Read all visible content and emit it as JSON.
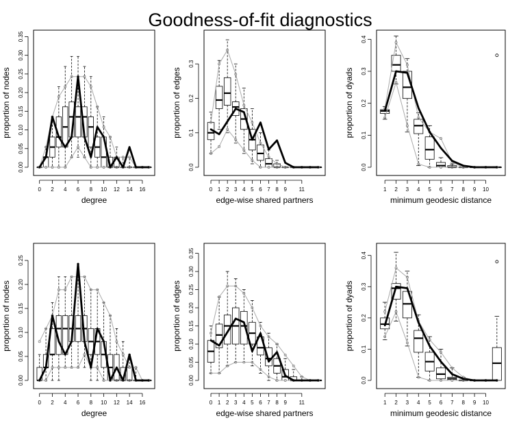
{
  "title": "Goodness-of-fit diagnostics",
  "chart_data": [
    {
      "type": "boxplot",
      "xlabel": "degree",
      "ylabel": "proportion of nodes",
      "x": [
        0,
        1,
        2,
        3,
        4,
        5,
        6,
        7,
        8,
        9,
        10,
        11,
        12,
        13,
        14,
        15,
        16,
        17
      ],
      "xticks": [
        0,
        2,
        4,
        6,
        8,
        10,
        12,
        14,
        16
      ],
      "ylim": [
        0,
        0.36
      ],
      "yticks": [
        0.0,
        0.05,
        0.1,
        0.15,
        0.2,
        0.25,
        0.3,
        0.35
      ],
      "ytick_labels": [
        "0.00",
        "0.05",
        "0.10",
        "0.15",
        "0.20",
        "0.25",
        "0.30",
        "0.35"
      ],
      "observed": [
        0,
        0.027,
        0.135,
        0.081,
        0.054,
        0.081,
        0.243,
        0.081,
        0.027,
        0.108,
        0.081,
        0,
        0.027,
        0,
        0.054,
        0,
        0,
        0
      ],
      "sim_min": [
        0,
        0,
        0,
        0,
        0,
        0.027,
        0.054,
        0.027,
        0,
        0,
        0,
        0,
        0,
        0,
        0,
        0,
        0,
        0
      ],
      "sim_max": [
        0,
        0.054,
        0.135,
        0.189,
        0.216,
        0.243,
        0.243,
        0.243,
        0.216,
        0.162,
        0.108,
        0.081,
        0.027,
        0.027,
        0.027,
        0,
        0,
        0
      ],
      "q1": [
        0,
        0,
        0.027,
        0.054,
        0.054,
        0.081,
        0.081,
        0.081,
        0.054,
        0.027,
        0,
        0,
        0,
        0,
        0,
        0,
        0,
        0
      ],
      "median": [
        0,
        0.027,
        0.054,
        0.081,
        0.108,
        0.135,
        0.135,
        0.135,
        0.108,
        0.054,
        0.027,
        0,
        0,
        0,
        0,
        0,
        0,
        0
      ],
      "q3": [
        0,
        0.027,
        0.081,
        0.135,
        0.162,
        0.175,
        0.162,
        0.162,
        0.135,
        0.081,
        0.081,
        0.027,
        0.027,
        0,
        0,
        0,
        0,
        0
      ],
      "wlo": [
        0,
        0,
        0,
        0,
        0,
        0.027,
        0.027,
        0.027,
        0,
        0,
        0,
        0,
        0,
        0,
        0,
        0,
        0,
        0
      ],
      "whi": [
        0,
        0.054,
        0.135,
        0.216,
        0.27,
        0.297,
        0.297,
        0.27,
        0.243,
        0.162,
        0.135,
        0.081,
        0.054,
        0.027,
        0.027,
        0,
        0,
        0
      ],
      "outliers": []
    },
    {
      "type": "boxplot",
      "xlabel": "edge-wise shared partners",
      "ylabel": "proportion of edges",
      "x": [
        0,
        1,
        2,
        3,
        4,
        5,
        6,
        7,
        8,
        9,
        10,
        11,
        12,
        13
      ],
      "xticks": [
        0,
        1,
        2,
        3,
        4,
        5,
        6,
        7,
        8,
        9,
        11
      ],
      "ylim": [
        0,
        0.39
      ],
      "yticks": [
        0.0,
        0.1,
        0.2,
        0.3
      ],
      "ytick_labels": [
        "0.0",
        "0.1",
        "0.2",
        "0.3"
      ],
      "observed": [
        0.11,
        0.096,
        0.133,
        0.17,
        0.16,
        0.08,
        0.13,
        0.052,
        0.078,
        0.013,
        0,
        0,
        0,
        0
      ],
      "sim_min": [
        0.04,
        0.06,
        0.11,
        0.08,
        0.05,
        0.02,
        0,
        0,
        0,
        0,
        0,
        0,
        0,
        0
      ],
      "sim_max": [
        0.13,
        0.3,
        0.34,
        0.27,
        0.18,
        0.13,
        0.07,
        0.03,
        0.01,
        0,
        0,
        0,
        0,
        0
      ],
      "q1": [
        0.08,
        0.17,
        0.18,
        0.15,
        0.11,
        0.05,
        0.02,
        0,
        0,
        0,
        0,
        0,
        0,
        0
      ],
      "median": [
        0.1,
        0.195,
        0.215,
        0.175,
        0.14,
        0.08,
        0.04,
        0.01,
        0,
        0,
        0,
        0,
        0,
        0
      ],
      "q3": [
        0.13,
        0.235,
        0.26,
        0.19,
        0.17,
        0.11,
        0.065,
        0.025,
        0.01,
        0,
        0,
        0,
        0,
        0
      ],
      "wlo": [
        0.04,
        0.11,
        0.1,
        0.07,
        0.04,
        0.01,
        0,
        0,
        0,
        0,
        0,
        0,
        0,
        0
      ],
      "whi": [
        0.16,
        0.31,
        0.37,
        0.3,
        0.23,
        0.17,
        0.1,
        0.05,
        0.02,
        0,
        0,
        0,
        0,
        0
      ],
      "outliers": []
    },
    {
      "type": "boxplot",
      "xlabel": "minimum geodesic distance",
      "ylabel": "proportion of dyads",
      "x": [
        1,
        2,
        3,
        4,
        5,
        6,
        7,
        8,
        9,
        10,
        11
      ],
      "xticks": [
        1,
        2,
        3,
        4,
        5,
        6,
        7,
        8,
        9,
        10
      ],
      "ylim": [
        0,
        0.42
      ],
      "yticks": [
        0.0,
        0.1,
        0.2,
        0.3,
        0.4
      ],
      "ytick_labels": [
        "0.0",
        "0.1",
        "0.2",
        "0.3",
        "0.4"
      ],
      "observed": [
        0.176,
        0.3,
        0.295,
        0.185,
        0.11,
        0.06,
        0.02,
        0.005,
        0,
        0,
        0
      ],
      "sim_min": [
        0.155,
        0.265,
        0.13,
        0.01,
        0,
        0,
        0,
        0,
        0,
        0,
        0
      ],
      "sim_max": [
        0.185,
        0.39,
        0.32,
        0.155,
        0.11,
        0.09,
        0.015,
        0,
        0,
        0,
        0
      ],
      "q1": [
        0.168,
        0.3,
        0.215,
        0.105,
        0.025,
        0,
        0,
        0,
        0,
        0,
        0
      ],
      "median": [
        0.176,
        0.32,
        0.25,
        0.13,
        0.055,
        0.005,
        0,
        0,
        0,
        0,
        0
      ],
      "q3": [
        0.18,
        0.35,
        0.3,
        0.15,
        0.095,
        0.015,
        0.005,
        0,
        0,
        0,
        0
      ],
      "wlo": [
        0.15,
        0.26,
        0.11,
        0.005,
        0,
        0,
        0,
        0,
        0,
        0,
        0
      ],
      "whi": [
        0.19,
        0.41,
        0.34,
        0.17,
        0.13,
        0.03,
        0.01,
        0,
        0,
        0,
        0
      ],
      "outliers": [
        {
          "x": 11,
          "y": 0.35
        }
      ]
    },
    {
      "type": "boxplot",
      "xlabel": "degree",
      "ylabel": "proportion of nodes",
      "x": [
        0,
        1,
        2,
        3,
        4,
        5,
        6,
        7,
        8,
        9,
        10,
        11,
        12,
        13,
        14,
        15,
        16,
        17
      ],
      "xticks": [
        0,
        2,
        4,
        6,
        8,
        10,
        12,
        14,
        16
      ],
      "ylim": [
        0,
        0.28
      ],
      "yticks": [
        0.0,
        0.05,
        0.1,
        0.15,
        0.2,
        0.25
      ],
      "ytick_labels": [
        "0.00",
        "0.05",
        "0.10",
        "0.15",
        "0.20",
        "0.25"
      ],
      "observed": [
        0,
        0.027,
        0.135,
        0.081,
        0.054,
        0.081,
        0.243,
        0.081,
        0.027,
        0.108,
        0.081,
        0,
        0.027,
        0,
        0.054,
        0,
        0,
        0
      ],
      "sim_min": [
        0,
        0,
        0.027,
        0.027,
        0.027,
        0.027,
        0.027,
        0.054,
        0.027,
        0.027,
        0,
        0,
        0,
        0,
        0,
        0,
        0,
        0
      ],
      "sim_max": [
        0.081,
        0.108,
        0.135,
        0.189,
        0.189,
        0.216,
        0.216,
        0.216,
        0.189,
        0.189,
        0.162,
        0.135,
        0.081,
        0.054,
        0.027,
        0.027,
        0,
        0
      ],
      "q1": [
        0,
        0.027,
        0.054,
        0.054,
        0.054,
        0.081,
        0.081,
        0.081,
        0.054,
        0.054,
        0.027,
        0,
        0,
        0,
        0,
        0,
        0,
        0
      ],
      "median": [
        0,
        0.027,
        0.054,
        0.108,
        0.108,
        0.108,
        0.108,
        0.108,
        0.081,
        0.081,
        0.054,
        0.027,
        0,
        0,
        0,
        0,
        0,
        0
      ],
      "q3": [
        0.027,
        0.054,
        0.108,
        0.135,
        0.135,
        0.135,
        0.135,
        0.135,
        0.108,
        0.108,
        0.081,
        0.054,
        0.054,
        0.027,
        0.027,
        0,
        0,
        0
      ],
      "wlo": [
        0,
        0,
        0,
        0,
        0.027,
        0.027,
        0.027,
        0.027,
        0,
        0,
        0,
        0,
        0,
        0,
        0,
        0,
        0,
        0
      ],
      "whi": [
        0.054,
        0.108,
        0.162,
        0.216,
        0.216,
        0.216,
        0.243,
        0.216,
        0.189,
        0.189,
        0.162,
        0.135,
        0.108,
        0.081,
        0.054,
        0.027,
        0,
        0
      ],
      "outliers": []
    },
    {
      "type": "boxplot",
      "xlabel": "edge-wise shared partners",
      "ylabel": "proportion of edges",
      "x": [
        0,
        1,
        2,
        3,
        4,
        5,
        6,
        7,
        8,
        9,
        10,
        11,
        12,
        13
      ],
      "xticks": [
        0,
        1,
        2,
        3,
        4,
        5,
        6,
        7,
        8,
        9,
        11
      ],
      "ylim": [
        0,
        0.37
      ],
      "yticks": [
        0.0,
        0.05,
        0.1,
        0.15,
        0.2,
        0.25,
        0.3,
        0.35
      ],
      "ytick_labels": [
        "0.00",
        "0.05",
        "0.10",
        "0.15",
        "0.20",
        "0.25",
        "0.30",
        "0.35"
      ],
      "observed": [
        0.11,
        0.096,
        0.133,
        0.17,
        0.16,
        0.08,
        0.13,
        0.052,
        0.078,
        0.013,
        0,
        0,
        0,
        0
      ],
      "sim_min": [
        0.02,
        0.02,
        0.04,
        0.05,
        0.05,
        0.05,
        0.03,
        0.01,
        0,
        0,
        0,
        0,
        0,
        0
      ],
      "sim_max": [
        0.13,
        0.23,
        0.26,
        0.26,
        0.24,
        0.2,
        0.15,
        0.12,
        0.1,
        0.07,
        0.04,
        0.01,
        0,
        0
      ],
      "q1": [
        0.05,
        0.09,
        0.1,
        0.1,
        0.1,
        0.1,
        0.07,
        0.04,
        0.02,
        0,
        0,
        0,
        0,
        0
      ],
      "median": [
        0.08,
        0.125,
        0.15,
        0.15,
        0.15,
        0.13,
        0.09,
        0.06,
        0.04,
        0.01,
        0,
        0,
        0,
        0
      ],
      "q3": [
        0.11,
        0.155,
        0.18,
        0.2,
        0.19,
        0.16,
        0.12,
        0.09,
        0.06,
        0.03,
        0.01,
        0,
        0,
        0
      ],
      "wlo": [
        0.02,
        0.02,
        0.04,
        0.05,
        0.05,
        0.04,
        0.02,
        0,
        0,
        0,
        0,
        0,
        0,
        0
      ],
      "whi": [
        0.15,
        0.23,
        0.3,
        0.28,
        0.25,
        0.22,
        0.16,
        0.13,
        0.1,
        0.06,
        0.03,
        0.01,
        0,
        0
      ],
      "outliers": []
    },
    {
      "type": "boxplot",
      "xlabel": "minimum geodesic distance",
      "ylabel": "proportion of dyads",
      "x": [
        1,
        2,
        3,
        4,
        5,
        6,
        7,
        8,
        9,
        10,
        11
      ],
      "xticks": [
        1,
        2,
        3,
        4,
        5,
        6,
        7,
        8,
        9,
        10
      ],
      "ylim": [
        0,
        0.43
      ],
      "yticks": [
        0.0,
        0.1,
        0.2,
        0.3,
        0.4
      ],
      "ytick_labels": [
        "0.0",
        "0.1",
        "0.2",
        "0.3",
        "0.4"
      ],
      "observed": [
        0.176,
        0.3,
        0.295,
        0.185,
        0.11,
        0.06,
        0.02,
        0.005,
        0,
        0,
        0
      ],
      "sim_min": [
        0.14,
        0.22,
        0.12,
        0.01,
        0,
        0,
        0,
        0,
        0,
        0,
        0
      ],
      "sim_max": [
        0.22,
        0.36,
        0.33,
        0.19,
        0.13,
        0.09,
        0.04,
        0.01,
        0,
        0,
        0
      ],
      "q1": [
        0.165,
        0.26,
        0.2,
        0.09,
        0.03,
        0.005,
        0,
        0,
        0,
        0,
        0
      ],
      "median": [
        0.18,
        0.295,
        0.245,
        0.135,
        0.06,
        0.02,
        0.005,
        0,
        0,
        0,
        0.055
      ],
      "q3": [
        0.2,
        0.31,
        0.285,
        0.16,
        0.09,
        0.04,
        0.01,
        0,
        0,
        0,
        0.105
      ],
      "wlo": [
        0.13,
        0.19,
        0.11,
        0.01,
        0,
        0,
        0,
        0,
        0,
        0,
        0
      ],
      "whi": [
        0.25,
        0.41,
        0.35,
        0.21,
        0.14,
        0.1,
        0.04,
        0.01,
        0,
        0,
        0.205
      ],
      "outliers": [
        {
          "x": 11,
          "y": 0.38
        }
      ]
    }
  ]
}
